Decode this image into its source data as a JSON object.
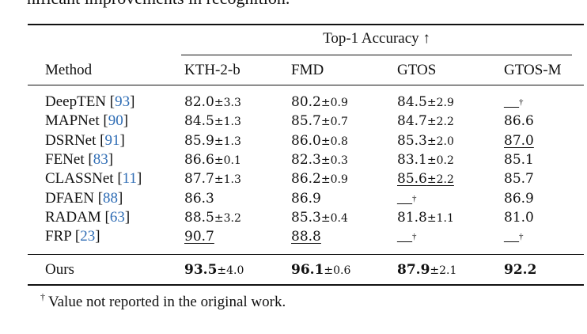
{
  "intro_text": "nificant improvements in recognition.",
  "table": {
    "group_header": "Top-1 Accuracy ↑",
    "columns": [
      "Method",
      "KTH-2-b",
      "FMD",
      "GTOS",
      "GTOS-M"
    ],
    "rows": [
      {
        "method": "DeepTEN",
        "ref": "93",
        "cells": [
          {
            "v": "82.0",
            "pm": "±3.3"
          },
          {
            "v": "80.2",
            "pm": "±0.9"
          },
          {
            "v": "84.5",
            "pm": "±2.9"
          },
          {
            "v": "—",
            "dag": "†"
          }
        ]
      },
      {
        "method": "MAPNet",
        "ref": "90",
        "cells": [
          {
            "v": "84.5",
            "pm": "±1.3"
          },
          {
            "v": "85.7",
            "pm": "±0.7"
          },
          {
            "v": "84.7",
            "pm": "±2.2"
          },
          {
            "v": "86.6"
          }
        ]
      },
      {
        "method": "DSRNet",
        "ref": "91",
        "cells": [
          {
            "v": "85.9",
            "pm": "±1.3"
          },
          {
            "v": "86.0",
            "pm": "±0.8"
          },
          {
            "v": "85.3",
            "pm": "±2.0"
          },
          {
            "v": "87.0",
            "ul": true
          }
        ]
      },
      {
        "method": "FENet",
        "ref": "83",
        "cells": [
          {
            "v": "86.6",
            "pm": "±0.1"
          },
          {
            "v": "82.3",
            "pm": "±0.3"
          },
          {
            "v": "83.1",
            "pm": "±0.2"
          },
          {
            "v": "85.1"
          }
        ]
      },
      {
        "method": "CLASSNet",
        "ref": "11",
        "cells": [
          {
            "v": "87.7",
            "pm": "±1.3"
          },
          {
            "v": "86.2",
            "pm": "±0.9"
          },
          {
            "v": "85.6",
            "pm": "±2.2",
            "ul": true
          },
          {
            "v": "85.7"
          }
        ]
      },
      {
        "method": "DFAEN",
        "ref": "88",
        "cells": [
          {
            "v": "86.3"
          },
          {
            "v": "86.9"
          },
          {
            "v": "—",
            "dag": "†"
          },
          {
            "v": "86.9"
          }
        ]
      },
      {
        "method": "RADAM",
        "ref": "63",
        "cells": [
          {
            "v": "88.5",
            "pm": "±3.2"
          },
          {
            "v": "85.3",
            "pm": "±0.4"
          },
          {
            "v": "81.8",
            "pm": "±1.1"
          },
          {
            "v": "81.0"
          }
        ]
      },
      {
        "method": "FRP",
        "ref": "23",
        "cells": [
          {
            "v": "90.7",
            "ul": true
          },
          {
            "v": "88.8",
            "ul": true
          },
          {
            "v": "—",
            "dag": "†"
          },
          {
            "v": "—",
            "dag": "†"
          }
        ]
      }
    ],
    "ours": {
      "method": "Ours",
      "cells": [
        {
          "v": "93.5",
          "pm": "±4.0"
        },
        {
          "v": "96.1",
          "pm": "±0.6"
        },
        {
          "v": "87.9",
          "pm": "±2.1"
        },
        {
          "v": "92.2"
        }
      ]
    }
  },
  "footnote": {
    "mark": "†",
    "text": "Value not reported in the original work."
  }
}
